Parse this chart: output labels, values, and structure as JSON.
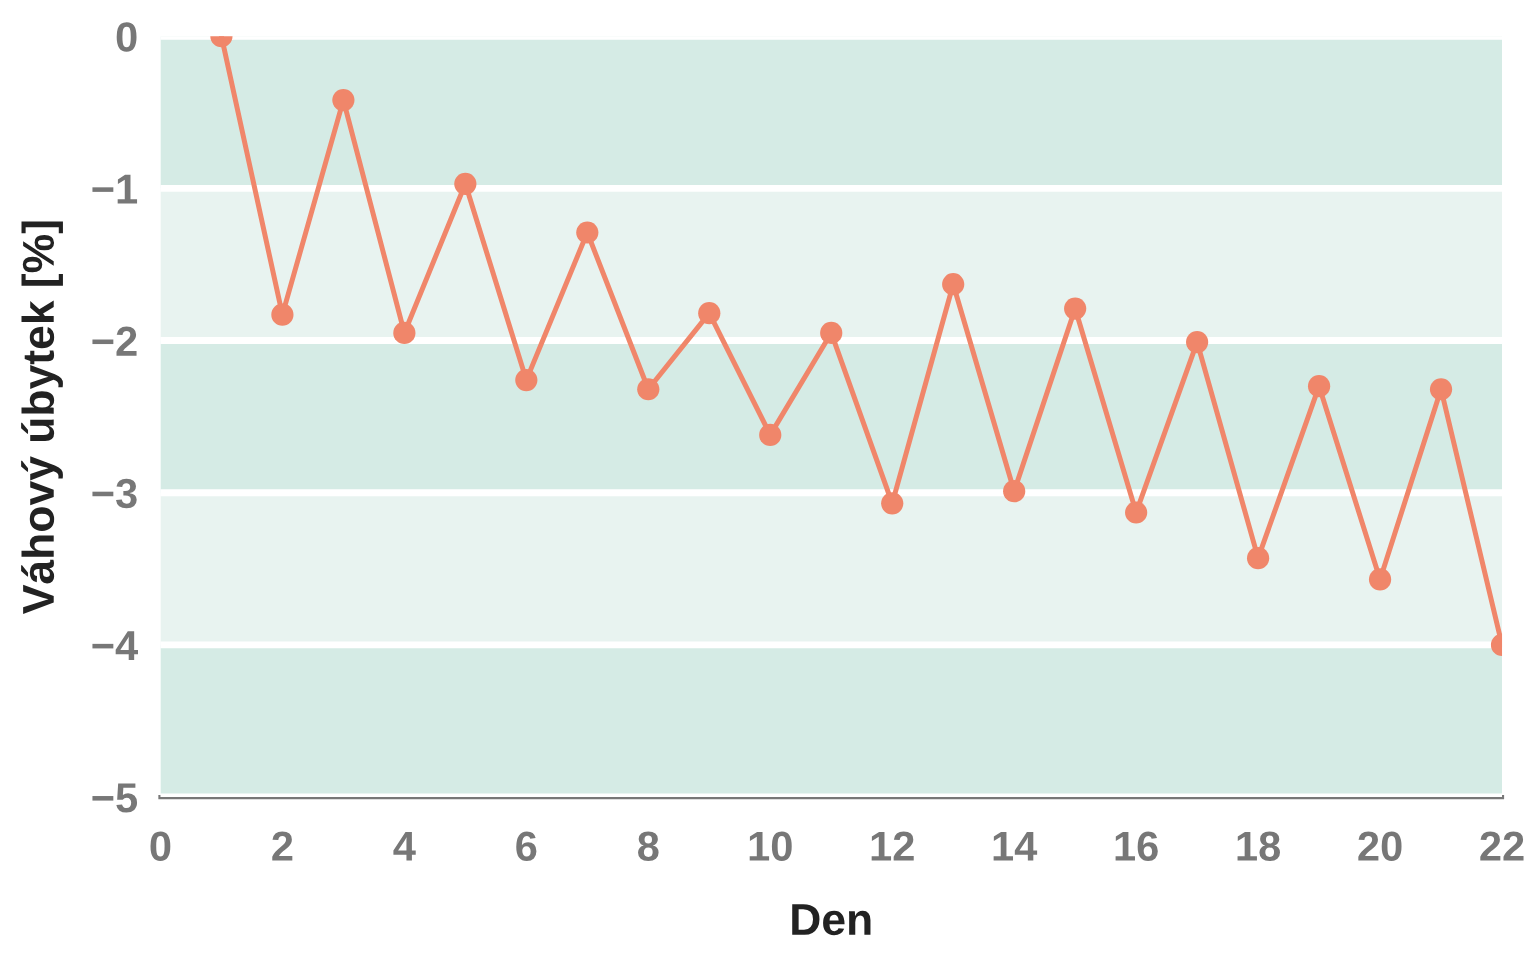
{
  "chart_data": {
    "type": "line",
    "xlabel": "Den",
    "ylabel": "Váhový úbytek [%]",
    "x": [
      1,
      2,
      3,
      4,
      5,
      6,
      7,
      8,
      9,
      10,
      11,
      12,
      13,
      14,
      15,
      16,
      17,
      18,
      19,
      20,
      21,
      22
    ],
    "series": [
      {
        "color": "#f0866a",
        "values": [
          0,
          -1.83,
          -0.42,
          -1.95,
          -0.97,
          -2.26,
          -1.29,
          -2.32,
          -1.82,
          -2.62,
          -1.95,
          -3.07,
          -1.63,
          -2.99,
          -1.79,
          -3.13,
          -2.01,
          -3.43,
          -2.3,
          -3.57,
          -2.32,
          -4.0
        ]
      }
    ],
    "xlim": [
      0,
      22
    ],
    "xticks": [
      0,
      2,
      4,
      6,
      8,
      10,
      12,
      14,
      16,
      18,
      20,
      22
    ],
    "ylim": [
      -5,
      0
    ],
    "yticks": [
      {
        "value": -5,
        "label": "−5"
      },
      {
        "value": -4,
        "label": "−4"
      },
      {
        "value": -3,
        "label": "−3"
      },
      {
        "value": -2,
        "label": "−2"
      },
      {
        "value": -1,
        "label": "−1"
      },
      0
    ],
    "bands": [
      {
        "axis": "y",
        "from": -1,
        "to": 0,
        "color": "#d5ebe5"
      },
      {
        "axis": "y",
        "from": -2,
        "to": -1,
        "color": "#e8f3f0"
      },
      {
        "axis": "y",
        "from": -3,
        "to": -2,
        "color": "#d5ebe5"
      },
      {
        "axis": "y",
        "from": -4,
        "to": -3,
        "color": "#e8f3f0"
      },
      {
        "axis": "y",
        "from": -5,
        "to": -4,
        "color": "#d5ebe5"
      }
    ],
    "grid": "y",
    "marker": "circle",
    "line_style": "solid",
    "legend": false
  }
}
